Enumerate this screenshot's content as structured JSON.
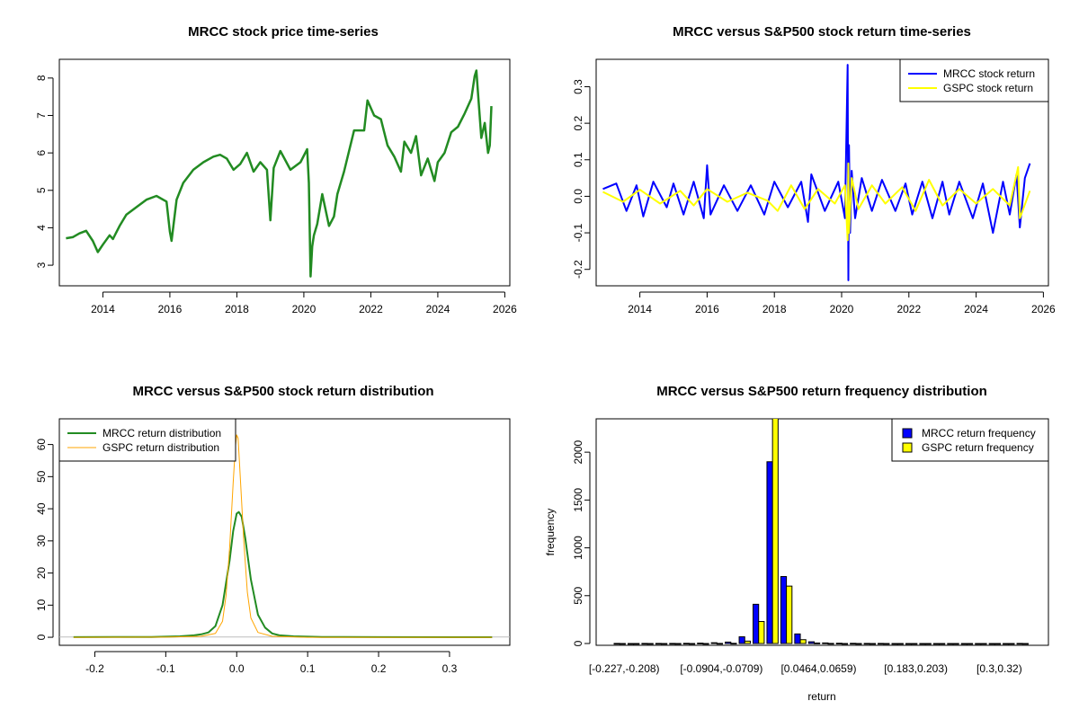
{
  "chart_data": [
    {
      "type": "line",
      "title": "MRCC stock price time-series",
      "xlabel": "",
      "ylabel": "",
      "xlim": [
        2012.7,
        2026.15
      ],
      "ylim": [
        2.45,
        8.5
      ],
      "x_ticks": [
        2014,
        2016,
        2018,
        2020,
        2022,
        2024,
        2026
      ],
      "x_tick_labels": [
        "2014",
        "2016",
        "2018",
        "2020",
        "2022",
        "2024",
        "2026"
      ],
      "y_ticks": [
        3,
        4,
        5,
        6,
        7,
        8
      ],
      "y_tick_labels": [
        "3",
        "4",
        "5",
        "6",
        "7",
        "8"
      ],
      "series": [
        {
          "name": "MRCC",
          "color": "#228B22",
          "x": [
            2012.9,
            2013.1,
            2013.3,
            2013.5,
            2013.7,
            2013.85,
            2014.0,
            2014.2,
            2014.3,
            2014.5,
            2014.7,
            2015.0,
            2015.3,
            2015.6,
            2015.9,
            2016.0,
            2016.05,
            2016.2,
            2016.4,
            2016.7,
            2017.0,
            2017.3,
            2017.5,
            2017.7,
            2017.9,
            2018.1,
            2018.3,
            2018.5,
            2018.7,
            2018.9,
            2019.0,
            2019.1,
            2019.3,
            2019.6,
            2019.9,
            2020.1,
            2020.15,
            2020.2,
            2020.25,
            2020.3,
            2020.4,
            2020.55,
            2020.75,
            2020.9,
            2021.0,
            2021.2,
            2021.5,
            2021.8,
            2021.9,
            2022.1,
            2022.3,
            2022.5,
            2022.7,
            2022.9,
            2023.0,
            2023.2,
            2023.35,
            2023.5,
            2023.7,
            2023.9,
            2024.0,
            2024.2,
            2024.4,
            2024.6,
            2024.8,
            2025.0,
            2025.1,
            2025.15,
            2025.2,
            2025.3,
            2025.4,
            2025.5,
            2025.55,
            2025.6
          ],
          "values": [
            3.72,
            3.75,
            3.85,
            3.92,
            3.65,
            3.35,
            3.55,
            3.8,
            3.7,
            4.05,
            4.35,
            4.55,
            4.75,
            4.85,
            4.7,
            3.9,
            3.65,
            4.75,
            5.2,
            5.55,
            5.75,
            5.9,
            5.95,
            5.85,
            5.55,
            5.7,
            6.0,
            5.5,
            5.75,
            5.55,
            4.2,
            5.6,
            6.05,
            5.55,
            5.75,
            6.1,
            5.2,
            2.7,
            3.5,
            3.8,
            4.1,
            4.9,
            4.05,
            4.3,
            4.9,
            5.5,
            6.6,
            6.6,
            7.4,
            7.0,
            6.9,
            6.2,
            5.9,
            5.5,
            6.3,
            6.0,
            6.45,
            5.4,
            5.85,
            5.25,
            5.75,
            6.0,
            6.55,
            6.7,
            7.05,
            7.45,
            8.05,
            8.2,
            7.6,
            6.4,
            6.8,
            6.0,
            6.2,
            7.25
          ]
        }
      ]
    },
    {
      "type": "line",
      "title": "MRCC versus S&P500 stock return time-series",
      "xlabel": "",
      "ylabel": "",
      "xlim": [
        2012.7,
        2026.15
      ],
      "ylim": [
        -0.245,
        0.375
      ],
      "x_ticks": [
        2014,
        2016,
        2018,
        2020,
        2022,
        2024,
        2026
      ],
      "x_tick_labels": [
        "2014",
        "2016",
        "2018",
        "2020",
        "2022",
        "2024",
        "2026"
      ],
      "y_ticks": [
        -0.2,
        -0.1,
        0.0,
        0.1,
        0.2,
        0.3
      ],
      "y_tick_labels": [
        "-0.2",
        "-0.1",
        "0.0",
        "0.1",
        "0.2",
        "0.3"
      ],
      "legend_position": "top-right",
      "series": [
        {
          "name": "MRCC stock return",
          "color": "#0000FF",
          "x": [
            2012.9,
            2013.3,
            2013.6,
            2013.9,
            2014.1,
            2014.4,
            2014.8,
            2015.0,
            2015.3,
            2015.6,
            2015.9,
            2016.0,
            2016.1,
            2016.5,
            2016.9,
            2017.3,
            2017.7,
            2018.0,
            2018.4,
            2018.8,
            2019.0,
            2019.1,
            2019.5,
            2019.9,
            2020.1,
            2020.18,
            2020.2,
            2020.22,
            2020.25,
            2020.3,
            2020.4,
            2020.6,
            2020.9,
            2021.2,
            2021.6,
            2021.9,
            2022.1,
            2022.4,
            2022.7,
            2023.0,
            2023.2,
            2023.5,
            2023.9,
            2024.2,
            2024.5,
            2024.8,
            2025.0,
            2025.2,
            2025.3,
            2025.45,
            2025.6
          ],
          "values": [
            0.02,
            0.035,
            -0.04,
            0.03,
            -0.055,
            0.04,
            -0.03,
            0.035,
            -0.05,
            0.04,
            -0.06,
            0.085,
            -0.05,
            0.03,
            -0.04,
            0.03,
            -0.05,
            0.04,
            -0.03,
            0.04,
            -0.07,
            0.06,
            -0.04,
            0.04,
            -0.06,
            0.36,
            -0.23,
            0.14,
            -0.1,
            0.07,
            -0.06,
            0.05,
            -0.04,
            0.045,
            -0.04,
            0.035,
            -0.05,
            0.04,
            -0.06,
            0.04,
            -0.05,
            0.04,
            -0.06,
            0.035,
            -0.1,
            0.04,
            -0.05,
            0.06,
            -0.085,
            0.05,
            0.09
          ]
        },
        {
          "name": "GSPC stock return",
          "color": "#FFFF00",
          "x": [
            2012.9,
            2013.5,
            2014.0,
            2014.6,
            2015.2,
            2015.6,
            2016.0,
            2016.6,
            2017.2,
            2017.8,
            2018.1,
            2018.5,
            2018.9,
            2019.3,
            2019.8,
            2020.1,
            2020.18,
            2020.2,
            2020.22,
            2020.3,
            2020.5,
            2020.9,
            2021.3,
            2021.8,
            2022.2,
            2022.6,
            2023.0,
            2023.5,
            2024.0,
            2024.5,
            2025.0,
            2025.25,
            2025.3,
            2025.6
          ],
          "values": [
            0.012,
            -0.015,
            0.018,
            -0.02,
            0.015,
            -0.025,
            0.02,
            -0.015,
            0.01,
            -0.012,
            -0.04,
            0.03,
            -0.035,
            0.02,
            -0.02,
            0.03,
            -0.12,
            0.09,
            -0.1,
            0.05,
            -0.035,
            0.03,
            -0.02,
            0.025,
            -0.04,
            0.045,
            -0.025,
            0.02,
            -0.02,
            0.02,
            -0.025,
            0.08,
            -0.06,
            0.015
          ]
        }
      ]
    },
    {
      "type": "line",
      "title": "MRCC versus S&P500 stock return distribution",
      "xlabel": "",
      "ylabel": "",
      "xlim": [
        -0.25,
        0.385
      ],
      "ylim": [
        -2.5,
        68
      ],
      "x_ticks": [
        -0.2,
        -0.1,
        0.0,
        0.1,
        0.2,
        0.3
      ],
      "x_tick_labels": [
        "-0.2",
        "-0.1",
        "0.0",
        "0.1",
        "0.2",
        "0.3"
      ],
      "y_ticks": [
        0,
        10,
        20,
        30,
        40,
        50,
        60
      ],
      "y_tick_labels": [
        "0",
        "10",
        "20",
        "30",
        "40",
        "50",
        "60"
      ],
      "legend_position": "top-left",
      "series": [
        {
          "name": "MRCC return distribution",
          "color": "#228B22",
          "x": [
            -0.23,
            -0.12,
            -0.08,
            -0.06,
            -0.05,
            -0.04,
            -0.03,
            -0.02,
            -0.01,
            -0.005,
            0.0,
            0.003,
            0.007,
            0.012,
            0.02,
            0.03,
            0.04,
            0.05,
            0.06,
            0.08,
            0.12,
            0.2,
            0.36
          ],
          "values": [
            0.05,
            0.1,
            0.3,
            0.6,
            0.9,
            1.5,
            3.5,
            10,
            24,
            33,
            38.5,
            39,
            37.5,
            31,
            18,
            7,
            3,
            1.2,
            0.6,
            0.3,
            0.1,
            0.05,
            0.03
          ]
        },
        {
          "name": "GSPC return distribution",
          "color": "#FFA500",
          "x": [
            -0.23,
            -0.1,
            -0.05,
            -0.03,
            -0.02,
            -0.015,
            -0.01,
            -0.005,
            -0.002,
            0.0,
            0.002,
            0.005,
            0.01,
            0.015,
            0.02,
            0.03,
            0.05,
            0.1,
            0.36
          ],
          "values": [
            0.0,
            0.05,
            0.3,
            1.2,
            5,
            13,
            28,
            48,
            59,
            63,
            62,
            50,
            30,
            14,
            6,
            1.5,
            0.3,
            0.0,
            0.0
          ]
        }
      ]
    },
    {
      "type": "bar",
      "title": "MRCC versus S&P500 return frequency distribution",
      "xlabel": "return",
      "ylabel": "frequency",
      "ylim": [
        0,
        2330
      ],
      "y_ticks": [
        0,
        500,
        1000,
        1500,
        2000
      ],
      "y_tick_labels": [
        "0",
        "500",
        "1000",
        "1500",
        "2000"
      ],
      "x_tick_labels_shown": [
        "[-0.227,-0.208)",
        "[-0.0904,-0.0709)",
        "[0.0464,0.0659)",
        "[0.183,0.203)",
        "[0.3,0.32)"
      ],
      "x_tick_label_positions": [
        0,
        7,
        14,
        21,
        27
      ],
      "legend_position": "top-right",
      "categories_count": 30,
      "series": [
        {
          "name": "MRCC return frequency",
          "color": "#0000FF",
          "values": [
            1,
            0,
            1,
            1,
            1,
            2,
            4,
            8,
            15,
            70,
            410,
            1900,
            700,
            100,
            18,
            6,
            3,
            2,
            1,
            1,
            0,
            0,
            0,
            0,
            0,
            0,
            0,
            0,
            0,
            1
          ]
        },
        {
          "name": "GSPC return frequency",
          "color": "#FFFF00",
          "values": [
            0,
            0,
            0,
            0,
            0,
            0,
            0,
            1,
            2,
            25,
            230,
            2400,
            600,
            40,
            5,
            1,
            0,
            0,
            0,
            0,
            0,
            0,
            0,
            0,
            0,
            0,
            0,
            0,
            0,
            0
          ]
        }
      ]
    }
  ]
}
